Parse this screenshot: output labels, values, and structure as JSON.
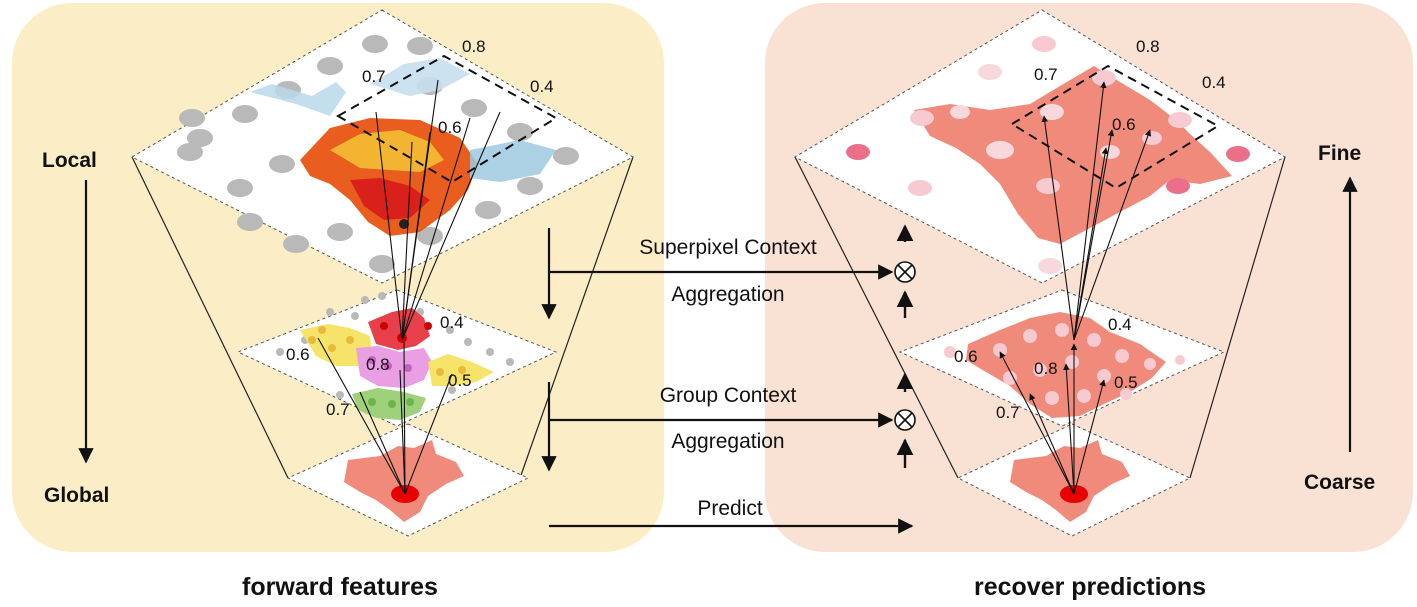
{
  "left_panel": {
    "caption": "forward features",
    "axis_top": "Local",
    "axis_bottom": "Global",
    "top_plane_weights": [
      "0.8",
      "0.7",
      "0.4",
      "0.6"
    ],
    "mid_plane_weights": [
      "0.4",
      "0.6",
      "0.8",
      "0.5",
      "0.7"
    ]
  },
  "right_panel": {
    "caption": "recover predictions",
    "axis_top": "Fine",
    "axis_bottom": "Coarse",
    "top_plane_weights": [
      "0.8",
      "0.7",
      "0.4",
      "0.6"
    ],
    "mid_plane_weights": [
      "0.4",
      "0.6",
      "0.8",
      "0.5",
      "0.7"
    ]
  },
  "middle": {
    "superpixel_line1": "Superpixel Context",
    "superpixel_line2": "Aggregation",
    "group_line1": "Group Context",
    "group_line2": "Aggregation",
    "predict": "Predict",
    "combine_symbol": "⊗"
  },
  "colors": {
    "left_bg": "#fbedc6",
    "right_bg": "#f9e1d3",
    "mask": "#f08b7c",
    "dot_gray": "#b9b9b9",
    "dot_pink": "#f7c9d0",
    "center_red": "#e60000"
  }
}
